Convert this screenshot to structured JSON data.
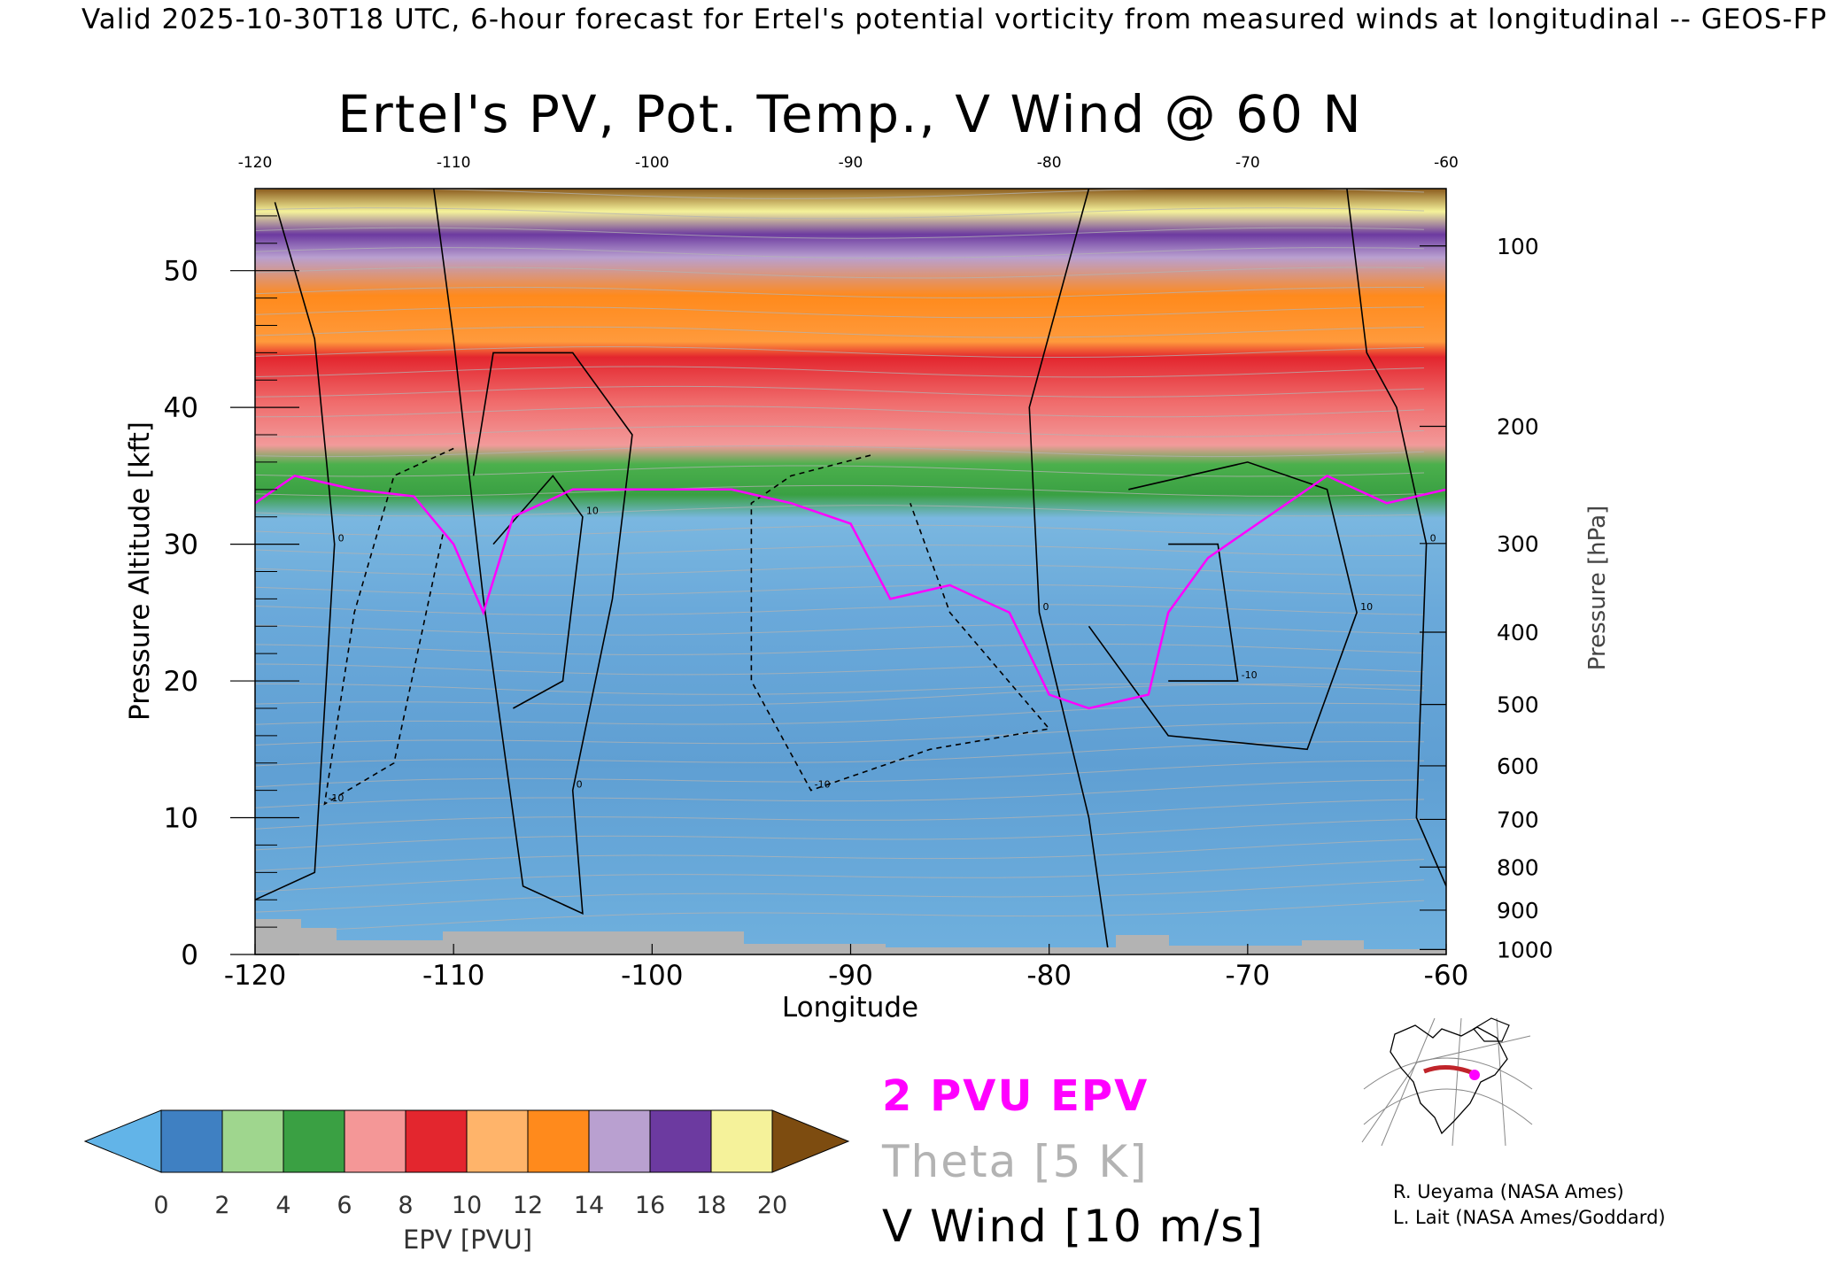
{
  "header": {
    "text": "Valid 2025-10-30T18 UTC, 6-hour forecast for Ertel's potential vorticity from measured winds at longitudinal -- GEOS-FP"
  },
  "chart_data": {
    "type": "heatmap",
    "title": "Ertel's PV, Pot. Temp., V Wind @ 60 N",
    "xlabel": "Longitude",
    "ylabel": "Pressure Altitude [kft]",
    "y2label": "Pressure [hPa]",
    "xlim": [
      -120,
      -60
    ],
    "ylim": [
      0,
      56
    ],
    "x_ticks": [
      "-120",
      "-110",
      "-100",
      "-90",
      "-80",
      "-70",
      "-60"
    ],
    "top_ticks": [
      "-120",
      "-110",
      "-100",
      "-90",
      "-80",
      "-70",
      "-60"
    ],
    "y_ticks": [
      "0",
      "10",
      "20",
      "30",
      "40",
      "50"
    ],
    "pressure_ticks": [
      "100",
      "200",
      "300",
      "400",
      "500",
      "600",
      "700",
      "800",
      "900",
      "1000"
    ],
    "pressure_levels": [
      100,
      200,
      300,
      400,
      500,
      600,
      700,
      800,
      900,
      1000
    ],
    "colorbar": {
      "label": "EPV [PVU]",
      "ticks": [
        "0",
        "2",
        "4",
        "6",
        "8",
        "10",
        "12",
        "14",
        "16",
        "18",
        "20"
      ],
      "colors": [
        "#62b4e8",
        "#3f80c2",
        "#9fd68e",
        "#3aa043",
        "#f49797",
        "#e3262e",
        "#ffb46a",
        "#ff8a1c",
        "#b9a0d0",
        "#6c3aa0",
        "#f5f29a",
        "#7d4c10"
      ]
    },
    "tropopause_pvu": 2,
    "tropopause_altitude_kft": [
      {
        "lon": -120,
        "alt": 33
      },
      {
        "lon": -118,
        "alt": 35
      },
      {
        "lon": -115,
        "alt": 34
      },
      {
        "lon": -112,
        "alt": 33.5
      },
      {
        "lon": -110,
        "alt": 30
      },
      {
        "lon": -108.5,
        "alt": 25
      },
      {
        "lon": -107,
        "alt": 32
      },
      {
        "lon": -104,
        "alt": 34
      },
      {
        "lon": -100,
        "alt": 34
      },
      {
        "lon": -96,
        "alt": 34
      },
      {
        "lon": -93,
        "alt": 33
      },
      {
        "lon": -90,
        "alt": 31.5
      },
      {
        "lon": -88,
        "alt": 26
      },
      {
        "lon": -85,
        "alt": 27
      },
      {
        "lon": -82,
        "alt": 25
      },
      {
        "lon": -80,
        "alt": 19
      },
      {
        "lon": -78,
        "alt": 18
      },
      {
        "lon": -75,
        "alt": 19
      },
      {
        "lon": -74,
        "alt": 25
      },
      {
        "lon": -72,
        "alt": 29
      },
      {
        "lon": -68,
        "alt": 33
      },
      {
        "lon": -66,
        "alt": 35
      },
      {
        "lon": -63,
        "alt": 33
      },
      {
        "lon": -60,
        "alt": 34
      }
    ],
    "vwind_contours": [
      {
        "label": "0",
        "style": "solid",
        "points": [
          [
            -119,
            55
          ],
          [
            -117,
            45
          ],
          [
            -116,
            30
          ],
          [
            -117,
            6
          ],
          [
            -120,
            4
          ]
        ]
      },
      {
        "label": "0",
        "style": "solid",
        "points": [
          [
            -111,
            56
          ],
          [
            -110,
            45
          ],
          [
            -108.5,
            26
          ],
          [
            -106.5,
            5
          ],
          [
            -103.5,
            3
          ],
          [
            -104,
            12
          ],
          [
            -102,
            26
          ],
          [
            -101,
            38
          ],
          [
            -104,
            44
          ],
          [
            -108,
            44
          ],
          [
            -109,
            35
          ]
        ]
      },
      {
        "label": "-10",
        "style": "dashed",
        "points": [
          [
            -110,
            37
          ],
          [
            -113,
            35
          ],
          [
            -115,
            25
          ],
          [
            -116.5,
            11
          ],
          [
            -113,
            14
          ],
          [
            -110.5,
            31
          ]
        ]
      },
      {
        "label": "10",
        "style": "solid",
        "points": [
          [
            -108,
            30
          ],
          [
            -105,
            35
          ],
          [
            -103.5,
            32
          ],
          [
            -104.5,
            20
          ],
          [
            -107,
            18
          ]
        ]
      },
      {
        "label": "-10",
        "style": "dashed",
        "points": [
          [
            -89,
            36.5
          ],
          [
            -93,
            35
          ],
          [
            -95,
            33
          ],
          [
            -95,
            20
          ],
          [
            -92,
            12
          ],
          [
            -86,
            15
          ],
          [
            -80,
            16.5
          ],
          [
            -85,
            25
          ],
          [
            -87,
            33
          ]
        ]
      },
      {
        "label": "0",
        "style": "solid",
        "points": [
          [
            -78,
            56
          ],
          [
            -81,
            40
          ],
          [
            -80.5,
            25
          ],
          [
            -78,
            10
          ],
          [
            -77,
            0
          ]
        ]
      },
      {
        "label": "10",
        "style": "solid",
        "points": [
          [
            -76,
            34
          ],
          [
            -70,
            36
          ],
          [
            -66,
            34
          ],
          [
            -64.5,
            25
          ],
          [
            -67,
            15
          ],
          [
            -74,
            16
          ],
          [
            -78,
            24
          ]
        ]
      },
      {
        "label": "-10",
        "style": "solid",
        "points": [
          [
            -74,
            30
          ],
          [
            -71.5,
            30
          ],
          [
            -70.5,
            20
          ],
          [
            -74,
            20
          ]
        ]
      },
      {
        "label": "0",
        "style": "solid",
        "points": [
          [
            -65,
            56
          ],
          [
            -64,
            44
          ],
          [
            -62.5,
            40
          ],
          [
            -61,
            30
          ],
          [
            -61.5,
            10
          ],
          [
            -60,
            5
          ]
        ]
      }
    ]
  },
  "legend": {
    "pvu": "2 PVU EPV",
    "theta": "Theta [5 K]",
    "vwind": "V Wind [10 m/s]"
  },
  "credits": {
    "line1": "R. Ueyama (NASA Ames)",
    "line2": "L. Lait (NASA Ames/Goddard)"
  },
  "colors": {
    "tropopause": "#ff00ff",
    "theta": "#b3b3b3",
    "terrain": "#b3b3b3",
    "vwind": "#000000"
  }
}
